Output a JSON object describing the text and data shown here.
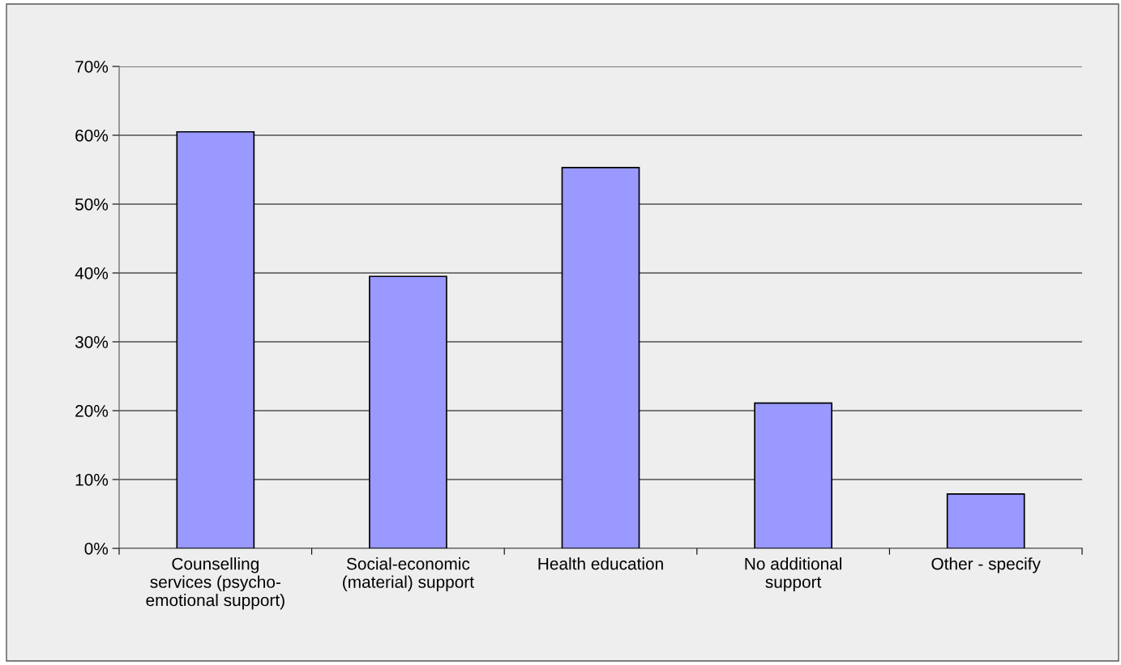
{
  "chart_data": {
    "type": "bar",
    "categories": [
      "Counselling\nservices (psycho-\nemotional support)",
      "Social-economic\n(material) support",
      "Health education",
      "No additional\nsupport",
      "Other - specify"
    ],
    "values": [
      60.5,
      39.5,
      55.3,
      21.1,
      7.9
    ],
    "color": "#9999ff",
    "ylim": [
      0,
      70
    ],
    "yticks": [
      {
        "value": 0,
        "label": "0%"
      },
      {
        "value": 10,
        "label": "10%"
      },
      {
        "value": 20,
        "label": "20%"
      },
      {
        "value": 30,
        "label": "30%"
      },
      {
        "value": 40,
        "label": "40%"
      },
      {
        "value": 50,
        "label": "50%"
      },
      {
        "value": 60,
        "label": "60%"
      },
      {
        "value": 70,
        "label": "70%"
      }
    ],
    "grid": "y"
  }
}
